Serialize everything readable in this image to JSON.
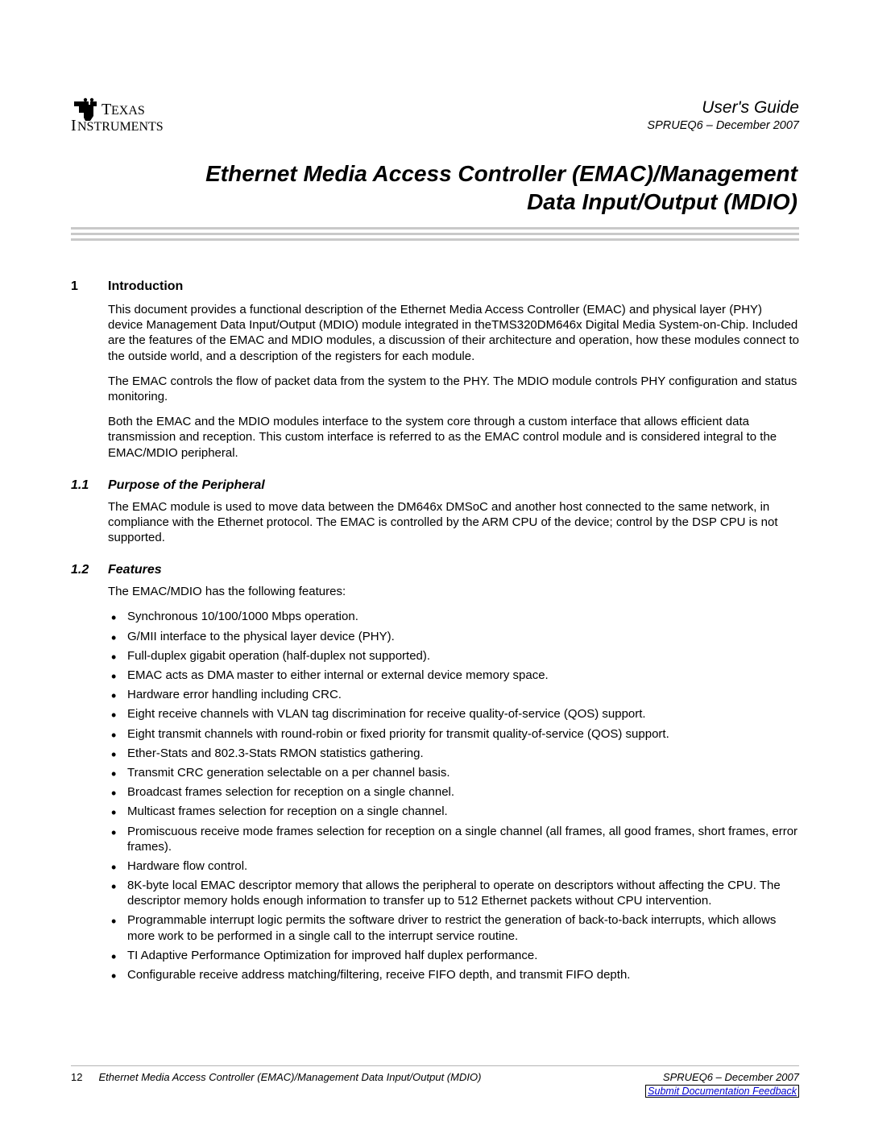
{
  "header": {
    "guide_title": "User's Guide",
    "doc_id": "SPRUEQ6 – December 2007"
  },
  "main_title_line1": "Ethernet Media Access Controller (EMAC)/Management",
  "main_title_line2": "Data Input/Output (MDIO)",
  "section1": {
    "num": "1",
    "title": "Introduction",
    "p1": "This document provides a functional description of the Ethernet Media Access Controller (EMAC) and physical layer (PHY) device Management Data Input/Output (MDIO) module integrated in theTMS320DM646x Digital Media System-on-Chip. Included are the features of the EMAC and MDIO modules, a discussion of their architecture and operation, how these modules connect to the outside world, and a description of the registers for each module.",
    "p2": "The EMAC controls the flow of packet data from the system to the PHY. The MDIO module controls PHY configuration and status monitoring.",
    "p3": "Both the EMAC and the MDIO modules interface to the system core through a custom interface that allows efficient data transmission and reception. This custom interface is referred to as the EMAC control module and is considered integral to the EMAC/MDIO peripheral."
  },
  "section1_1": {
    "num": "1.1",
    "title": "Purpose of the Peripheral",
    "p1": "The EMAC module is used to move data between the DM646x DMSoC and another host connected to the same network, in compliance with the Ethernet protocol. The EMAC is controlled by the ARM CPU of the device; control by the DSP CPU is not supported."
  },
  "section1_2": {
    "num": "1.2",
    "title": "Features",
    "intro": "The EMAC/MDIO has the following features:",
    "bullets": [
      "Synchronous 10/100/1000 Mbps operation.",
      "G/MII interface to the physical layer device (PHY).",
      "Full-duplex gigabit operation (half-duplex not supported).",
      "EMAC acts as DMA master to either internal or external device memory space.",
      "Hardware error handling including CRC.",
      "Eight receive channels with VLAN tag discrimination for receive quality-of-service (QOS) support.",
      "Eight transmit channels with round-robin or fixed priority for transmit quality-of-service (QOS) support.",
      "Ether-Stats and 802.3-Stats RMON statistics gathering.",
      "Transmit CRC generation selectable on a per channel basis.",
      "Broadcast frames selection for reception on a single channel.",
      "Multicast frames selection for reception on a single channel.",
      "Promiscuous receive mode frames selection for reception on a single channel (all frames, all good frames, short frames, error frames).",
      "Hardware flow control.",
      "8K-byte local EMAC descriptor memory that allows the peripheral to operate on descriptors without affecting the CPU. The descriptor memory holds enough information to transfer up to 512 Ethernet packets without CPU intervention.",
      "Programmable interrupt logic permits the software driver to restrict the generation of back-to-back interrupts, which allows more work to be performed in a single call to the interrupt service routine.",
      "TI Adaptive Performance Optimization for improved half duplex performance.",
      "Configurable receive address matching/filtering, receive FIFO depth, and transmit FIFO depth."
    ]
  },
  "footer": {
    "page": "12",
    "doc_title": "Ethernet Media Access Controller (EMAC)/Management Data Input/Output (MDIO)",
    "doc_id": "SPRUEQ6 – December 2007",
    "feedback": "Submit Documentation Feedback"
  }
}
